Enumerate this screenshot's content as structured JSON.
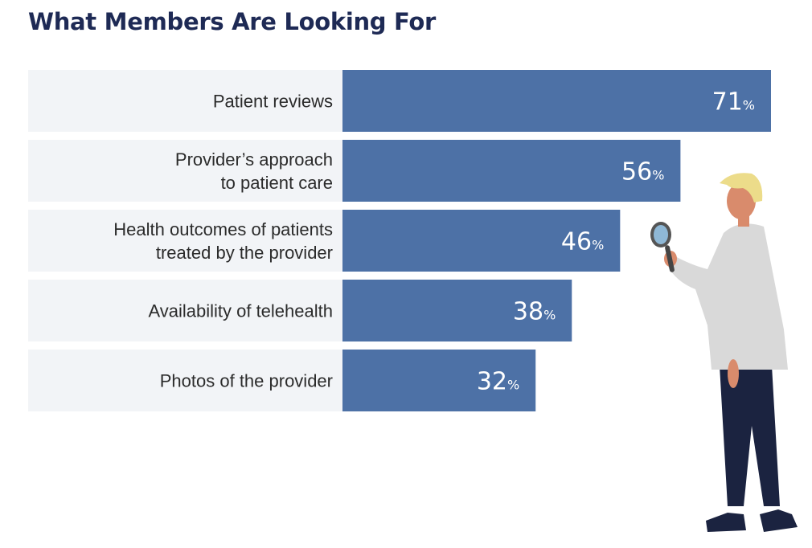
{
  "chart_data": {
    "type": "bar",
    "orientation": "horizontal",
    "title": "What Members Are Looking For",
    "categories": [
      [
        "Patient reviews"
      ],
      [
        "Provider’s approach",
        "to patient care"
      ],
      [
        "Health outcomes of patients",
        "treated by the provider"
      ],
      [
        "Availability of telehealth"
      ],
      [
        "Photos of the provider"
      ]
    ],
    "values": [
      71,
      56,
      46,
      38,
      32
    ],
    "value_suffix": "%",
    "xlim": [
      0,
      71
    ],
    "bar_color": "#4d71a6",
    "label_bg_color": "#f2f4f7"
  },
  "illustration": {
    "name": "person-with-magnifying-glass",
    "colors": {
      "hair": "#ecdc8a",
      "skin": "#d98b6c",
      "shirt": "#d9d9d9",
      "pants": "#1b2340",
      "shoes": "#1b2340",
      "glass": "#8fb8d6"
    }
  }
}
